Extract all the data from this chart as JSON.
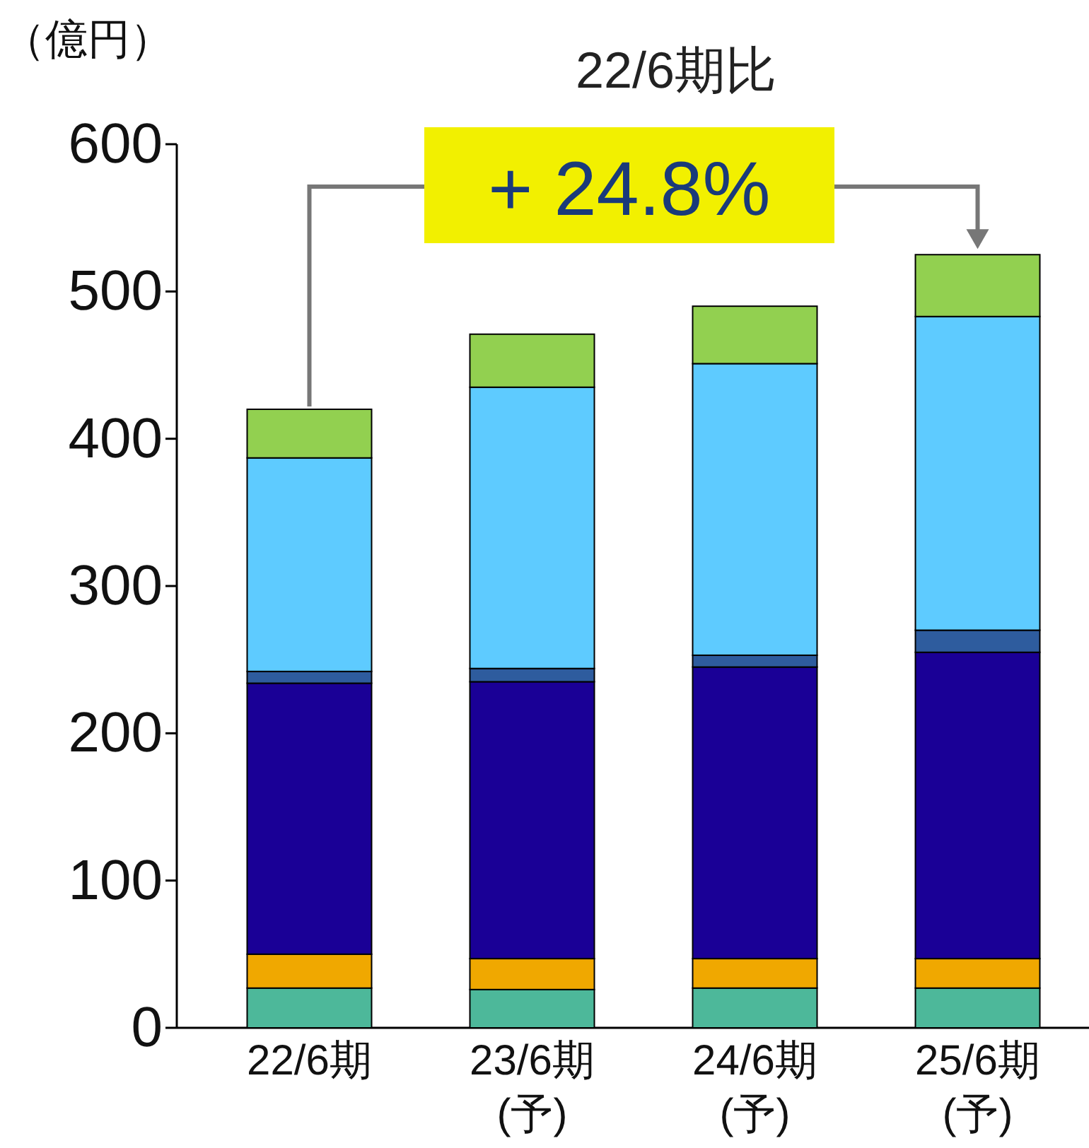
{
  "chart_data": {
    "type": "bar",
    "stacked": true,
    "ylabel": "（億円）",
    "categories": [
      "22/6期",
      "23/6期\n(予)",
      "24/6期\n(予)",
      "25/6期\n(予)"
    ],
    "series": [
      {
        "color": "#4db89a",
        "values": [
          27,
          26,
          27,
          27
        ]
      },
      {
        "color": "#f0a800",
        "values": [
          23,
          21,
          20,
          20
        ]
      },
      {
        "color": "#1a0096",
        "values": [
          184,
          188,
          198,
          208
        ]
      },
      {
        "color": "#2e5c9e",
        "values": [
          8,
          9,
          8,
          15
        ]
      },
      {
        "color": "#5ecbff",
        "values": [
          145,
          191,
          198,
          213
        ]
      },
      {
        "color": "#92d050",
        "values": [
          33,
          36,
          39,
          42
        ]
      }
    ],
    "ylim": [
      0,
      600
    ],
    "yticks": [
      0,
      100,
      200,
      300,
      400,
      500,
      600
    ],
    "annotations": [
      "22/6期比",
      "+ 24.8%"
    ]
  }
}
